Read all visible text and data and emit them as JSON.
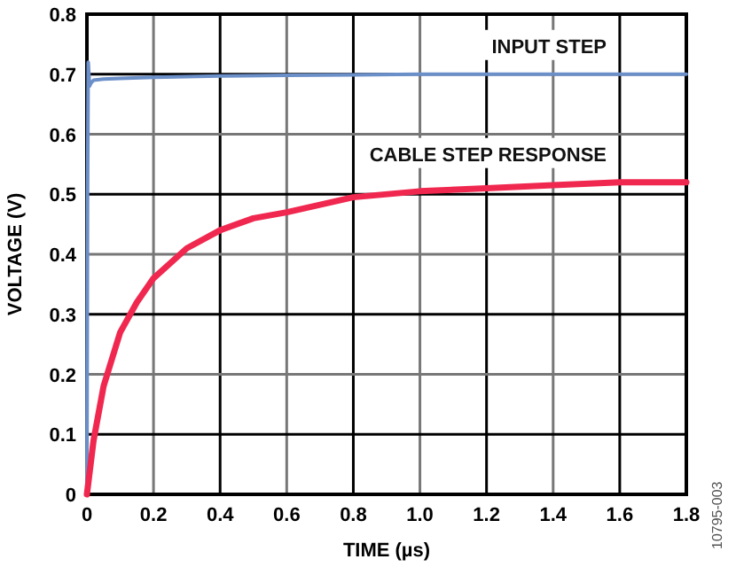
{
  "chart_data": {
    "type": "line",
    "xlabel": "TIME (µs)",
    "ylabel": "VOLTAGE (V)",
    "xlim": [
      0,
      1.8
    ],
    "xticks": [
      0,
      0.2,
      0.4,
      0.6,
      0.8,
      {
        "value": 1,
        "label": "1.0"
      },
      1.2,
      1.4,
      1.6,
      1.8
    ],
    "ylim": [
      0,
      0.8
    ],
    "yticks": [
      0,
      0.1,
      0.2,
      0.3,
      0.4,
      0.5,
      0.6,
      0.7,
      0.8
    ],
    "grid": true,
    "marker": "none",
    "line_style": "solid",
    "series": [
      {
        "name": "INPUT STEP",
        "color": "#6b8fc8",
        "x": [
          0,
          0.002,
          0.004,
          0.006,
          0.008,
          0.012,
          0.02,
          0.05,
          0.1,
          0.2,
          0.4,
          0.6,
          0.8,
          1.0,
          1.2,
          1.4,
          1.6,
          1.8
        ],
        "values": [
          0,
          0.5,
          0.72,
          0.7,
          0.68,
          0.685,
          0.69,
          0.692,
          0.693,
          0.695,
          0.697,
          0.698,
          0.699,
          0.7,
          0.7,
          0.7,
          0.7,
          0.7
        ]
      },
      {
        "name": "CABLE STEP RESPONSE",
        "color": "#f0284f",
        "x": [
          0,
          0.02,
          0.05,
          0.1,
          0.15,
          0.2,
          0.3,
          0.4,
          0.5,
          0.6,
          0.8,
          1.0,
          1.2,
          1.4,
          1.6,
          1.8
        ],
        "values": [
          0,
          0.09,
          0.18,
          0.27,
          0.32,
          0.36,
          0.41,
          0.44,
          0.46,
          0.47,
          0.495,
          0.505,
          0.51,
          0.515,
          0.52,
          0.52
        ]
      }
    ],
    "annotations": [
      "10795-003"
    ]
  }
}
